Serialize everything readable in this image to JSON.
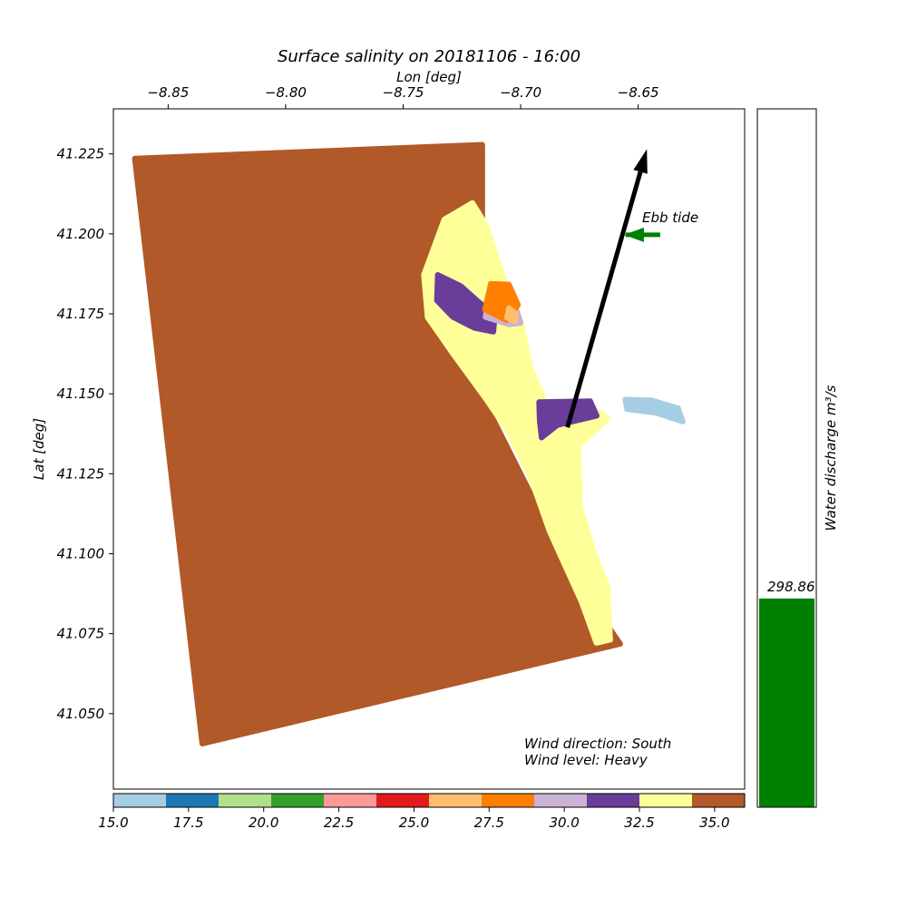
{
  "chart_data": [
    {
      "type": "scatter",
      "title": "Surface salinity on 20181106 - 16:00",
      "xlabel": "Lon [deg]",
      "ylabel": "Lat [deg]",
      "x_ticks": [
        -8.85,
        -8.8,
        -8.75,
        -8.7,
        -8.65
      ],
      "x_tick_labels": [
        "−8.85",
        "−8.80",
        "−8.75",
        "−8.70",
        "−8.65"
      ],
      "y_ticks": [
        41.225,
        41.2,
        41.175,
        41.15,
        41.125,
        41.1,
        41.075,
        41.05
      ],
      "y_tick_labels": [
        "41.225",
        "41.200",
        "41.175",
        "41.150",
        "41.125",
        "41.100",
        "41.075",
        "41.050"
      ],
      "xlim": [
        -8.8733,
        -8.6047
      ],
      "ylim": [
        41.0264,
        41.2391
      ],
      "domain_outline": [
        [
          -8.8642,
          41.2236
        ],
        [
          -8.7163,
          41.2279
        ],
        [
          -8.7163,
          41.1488
        ],
        [
          -8.6798,
          41.0955
        ],
        [
          -8.6576,
          41.0718
        ],
        [
          -8.8355,
          41.0406
        ]
      ],
      "regions": [
        {
          "salinity": "34.3-36.0",
          "color": "#b15928",
          "polygon": [
            [
              -8.8642,
              41.2236
            ],
            [
              -8.7163,
              41.2279
            ],
            [
              -8.7163,
              41.1488
            ],
            [
              -8.6798,
              41.0955
            ],
            [
              -8.6576,
              41.0718
            ],
            [
              -8.8355,
              41.0406
            ]
          ]
        },
        {
          "salinity": "32.5-34.3",
          "color": "#ffff99",
          "polygon": [
            [
              -8.7205,
              41.2097
            ],
            [
              -8.7147,
              41.2027
            ],
            [
              -8.7066,
              41.1848
            ],
            [
              -8.6999,
              41.1727
            ],
            [
              -8.6957,
              41.1579
            ],
            [
              -8.6874,
              41.1436
            ],
            [
              -8.6672,
              41.1445
            ],
            [
              -8.6629,
              41.1423
            ],
            [
              -8.6754,
              41.1336
            ],
            [
              -8.6747,
              41.1146
            ],
            [
              -8.6689,
              41.1004
            ],
            [
              -8.663,
              41.0897
            ],
            [
              -8.6619,
              41.0731
            ],
            [
              -8.6678,
              41.0721
            ],
            [
              -8.6741,
              41.0849
            ],
            [
              -8.6878,
              41.1071
            ],
            [
              -8.6961,
              41.1244
            ],
            [
              -8.7047,
              41.1374
            ],
            [
              -8.7144,
              41.148
            ],
            [
              -8.7289,
              41.1626
            ],
            [
              -8.7396,
              41.1739
            ],
            [
              -8.7412,
              41.1872
            ],
            [
              -8.7325,
              41.2045
            ]
          ]
        },
        {
          "salinity": "30.8-32.5",
          "color": "#6a3d9a",
          "polygon": [
            [
              -8.7353,
              41.1872
            ],
            [
              -8.7255,
              41.1837
            ],
            [
              -8.7178,
              41.1787
            ],
            [
              -8.7109,
              41.1748
            ],
            [
              -8.7116,
              41.1694
            ],
            [
              -8.7198,
              41.1706
            ],
            [
              -8.7289,
              41.174
            ],
            [
              -8.7357,
              41.1792
            ]
          ]
        },
        {
          "salinity": "30.8-32.5",
          "color": "#6a3d9a",
          "polygon": [
            [
              -8.6922,
              41.1474
            ],
            [
              -8.6704,
              41.1477
            ],
            [
              -8.6676,
              41.1431
            ],
            [
              -8.6843,
              41.1402
            ],
            [
              -8.6911,
              41.1363
            ],
            [
              -8.6919,
              41.1413
            ]
          ]
        },
        {
          "salinity": "29.0-30.8",
          "color": "#cab2d6",
          "polygon": [
            [
              -8.7127,
              41.1844
            ],
            [
              -8.7039,
              41.1812
            ],
            [
              -8.7,
              41.1721
            ],
            [
              -8.705,
              41.1717
            ],
            [
              -8.715,
              41.174
            ]
          ]
        },
        {
          "salinity": "27.3-29.0",
          "color": "#ff7f00",
          "polygon": [
            [
              -8.7127,
              41.1844
            ],
            [
              -8.705,
              41.1842
            ],
            [
              -8.7011,
              41.1778
            ],
            [
              -8.706,
              41.173
            ],
            [
              -8.7152,
              41.1763
            ]
          ]
        },
        {
          "salinity": "25.5-27.3",
          "color": "#fdbf6f",
          "polygon": [
            [
              -8.705,
              41.1768
            ],
            [
              -8.702,
              41.175
            ],
            [
              -8.7025,
              41.1726
            ],
            [
              -8.7058,
              41.1738
            ]
          ]
        },
        {
          "salinity": "15.0-16.8",
          "color": "#a6cee3",
          "polygon": [
            [
              -8.6555,
              41.1482
            ],
            [
              -8.6444,
              41.148
            ],
            [
              -8.633,
              41.1455
            ],
            [
              -8.631,
              41.1413
            ],
            [
              -8.6424,
              41.144
            ],
            [
              -8.6548,
              41.1452
            ]
          ]
        }
      ],
      "colorbar": {
        "ticks": [
          15.0,
          17.5,
          20.0,
          22.5,
          25.0,
          27.5,
          30.0,
          32.5,
          35.0
        ],
        "tick_labels": [
          "15.0",
          "17.5",
          "20.0",
          "22.5",
          "25.0",
          "27.5",
          "30.0",
          "32.5",
          "35.0"
        ],
        "range": [
          15.0,
          36.0
        ],
        "colors": [
          "#a6cee3",
          "#1f78b4",
          "#b2df8a",
          "#33a02c",
          "#fb9a99",
          "#e31a1c",
          "#fdbf6f",
          "#ff7f00",
          "#cab2d6",
          "#6a3d9a",
          "#ffff99",
          "#b15928"
        ]
      },
      "arrow": {
        "from": [
          -8.6801,
          41.1395
        ],
        "to": [
          -8.6463,
          41.2265
        ],
        "color": "#000000"
      },
      "tide": {
        "label": "Ebb tide",
        "arrow_color": "#008000",
        "point": [
          -8.6553,
          41.1997
        ]
      },
      "wind": {
        "direction": "Wind direction: South",
        "level": "Wind level: Heavy"
      }
    },
    {
      "type": "bar",
      "ylabel": "Water discharge m³/s",
      "values": [
        298.86
      ],
      "value_label": "298.86",
      "ylim": [
        0,
        1000
      ],
      "bar_color": "#008000"
    }
  ]
}
